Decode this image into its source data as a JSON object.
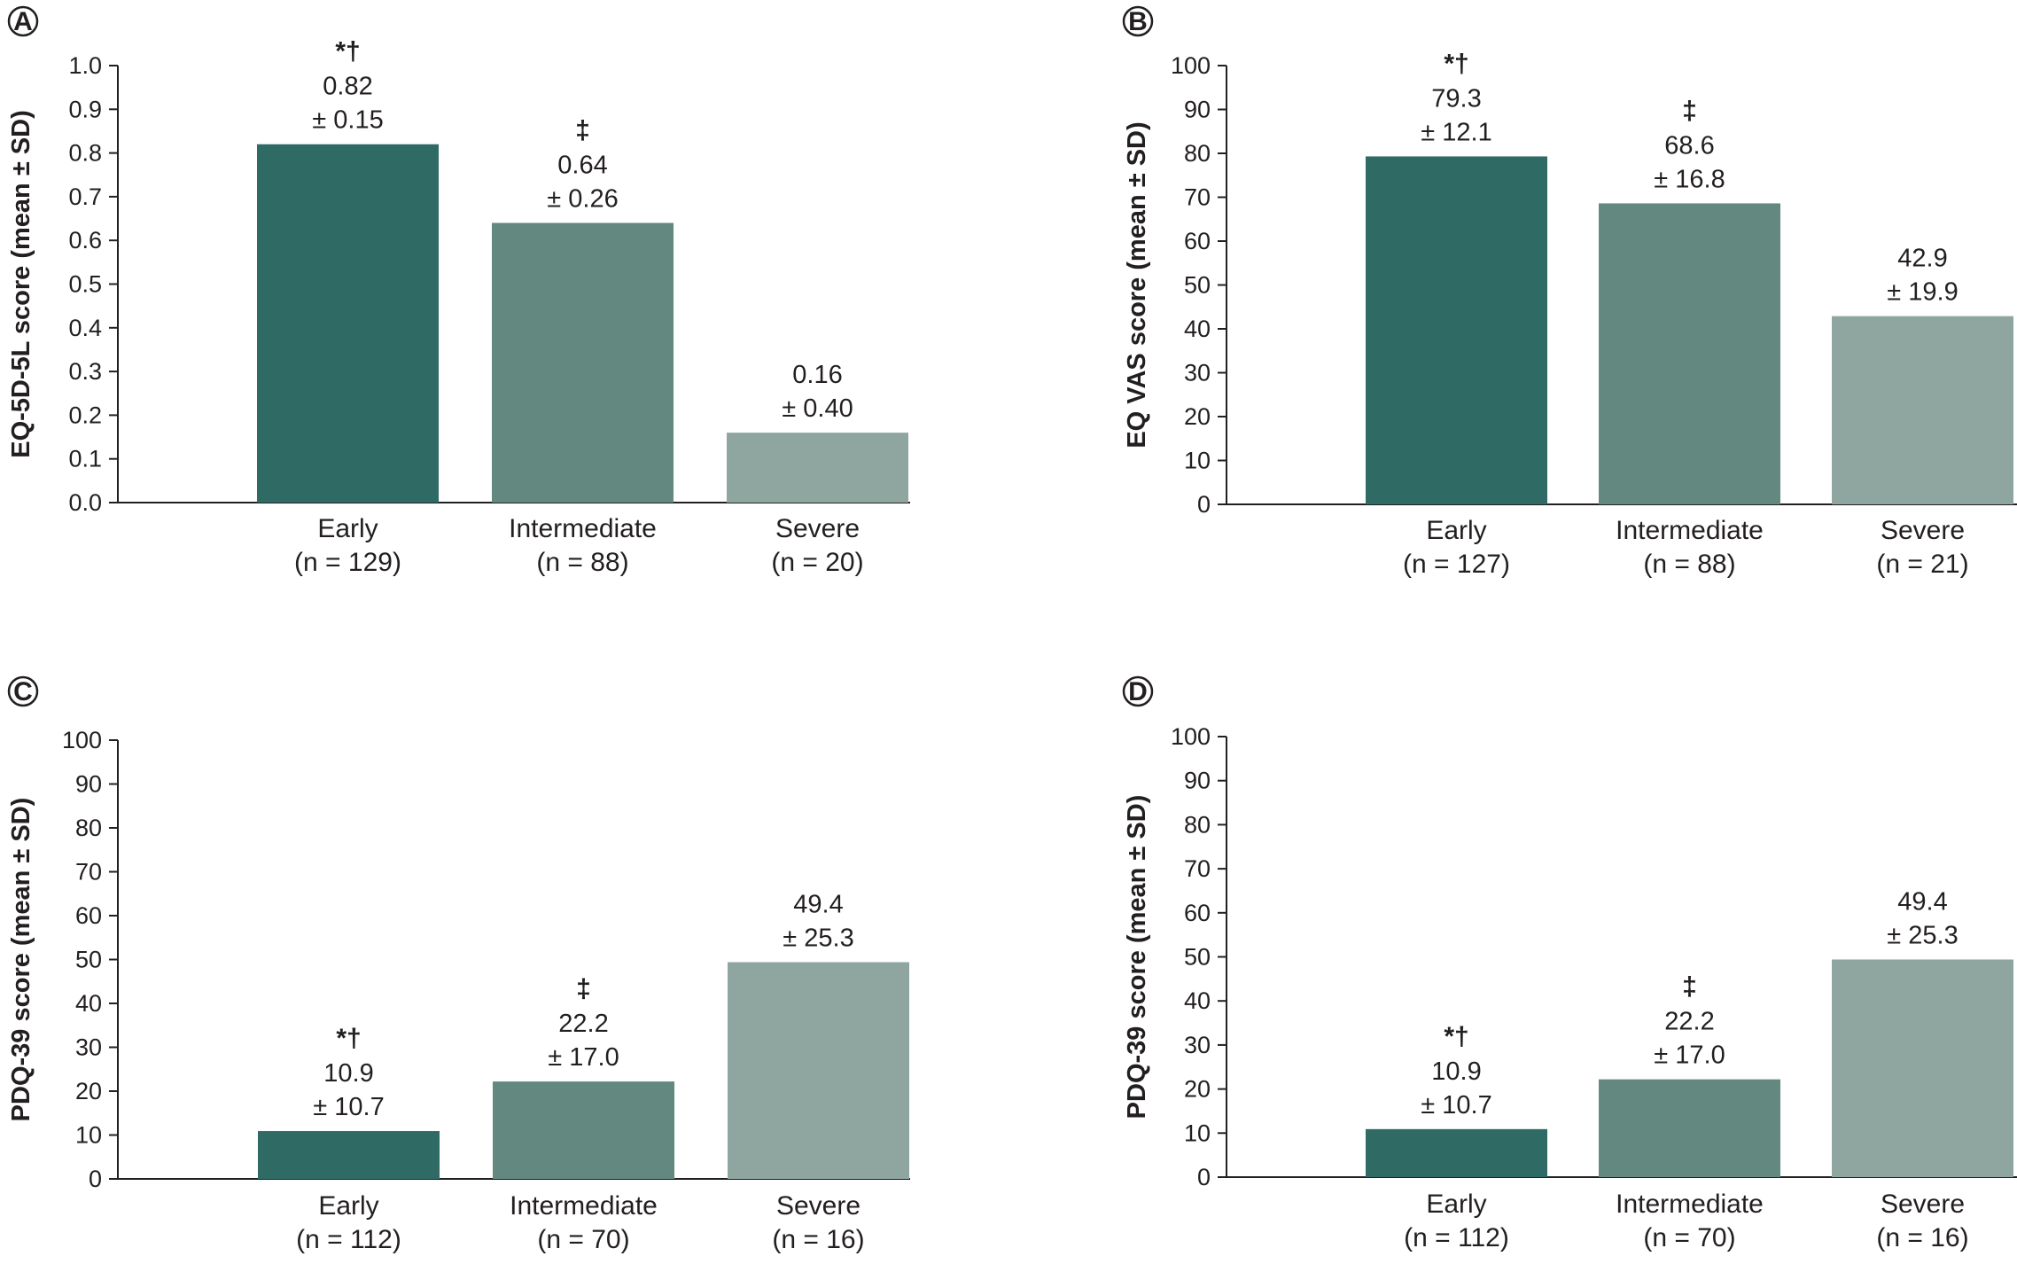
{
  "colors": {
    "early": "#2f6b64",
    "intermediate": "#63887f",
    "severe": "#8fa6a0",
    "axis": "#231f20"
  },
  "chart_data": [
    {
      "panel": "A",
      "type": "bar",
      "ylabel": "EQ-5D-5L score (mean ± SD)",
      "ylim": [
        0,
        1.0
      ],
      "yticks": [
        "0.0",
        "0.1",
        "0.2",
        "0.3",
        "0.4",
        "0.5",
        "0.6",
        "0.7",
        "0.8",
        "0.9",
        "1.0"
      ],
      "categories": [
        "Early",
        "Intermediate",
        "Severe"
      ],
      "category_n": [
        "(n = 129)",
        "(n = 88)",
        "(n = 20)"
      ],
      "values": [
        0.82,
        0.64,
        0.16
      ],
      "value_labels": [
        "0.82",
        "0.64",
        "0.16"
      ],
      "sd_labels": [
        "± 0.15",
        "± 0.26",
        "± 0.40"
      ],
      "significance": [
        "*†",
        "‡",
        ""
      ]
    },
    {
      "panel": "B",
      "type": "bar",
      "ylabel": "EQ VAS score (mean ± SD)",
      "ylim": [
        0,
        100
      ],
      "yticks": [
        "0",
        "10",
        "20",
        "30",
        "40",
        "50",
        "60",
        "70",
        "80",
        "90",
        "100"
      ],
      "categories": [
        "Early",
        "Intermediate",
        "Severe"
      ],
      "category_n": [
        "(n = 127)",
        "(n = 88)",
        "(n = 21)"
      ],
      "values": [
        79.3,
        68.6,
        42.9
      ],
      "value_labels": [
        "79.3",
        "68.6",
        "42.9"
      ],
      "sd_labels": [
        "± 12.1",
        "± 16.8",
        "± 19.9"
      ],
      "significance": [
        "*†",
        "‡",
        ""
      ]
    },
    {
      "panel": "C",
      "type": "bar",
      "ylabel": "PDQ-39 score (mean ± SD)",
      "ylim": [
        0,
        100
      ],
      "yticks": [
        "0",
        "10",
        "20",
        "30",
        "40",
        "50",
        "60",
        "70",
        "80",
        "90",
        "100"
      ],
      "categories": [
        "Early",
        "Intermediate",
        "Severe"
      ],
      "category_n": [
        "(n = 112)",
        "(n = 70)",
        "(n = 16)"
      ],
      "values": [
        10.9,
        22.2,
        49.4
      ],
      "value_labels": [
        "10.9",
        "22.2",
        "49.4"
      ],
      "sd_labels": [
        "± 10.7",
        "± 17.0",
        "± 25.3"
      ],
      "significance": [
        "*†",
        "‡",
        ""
      ]
    },
    {
      "panel": "D",
      "type": "bar",
      "ylabel": "PDQ-39 score (mean ± SD)",
      "ylim": [
        0,
        100
      ],
      "yticks": [
        "0",
        "10",
        "20",
        "30",
        "40",
        "50",
        "60",
        "70",
        "80",
        "90",
        "100"
      ],
      "categories": [
        "Early",
        "Intermediate",
        "Severe"
      ],
      "category_n": [
        "(n = 112)",
        "(n = 70)",
        "(n = 16)"
      ],
      "values": [
        10.9,
        22.2,
        49.4
      ],
      "value_labels": [
        "10.9",
        "22.2",
        "49.4"
      ],
      "sd_labels": [
        "± 10.7",
        "± 17.0",
        "± 25.3"
      ],
      "significance": [
        "*†",
        "‡",
        ""
      ]
    }
  ]
}
